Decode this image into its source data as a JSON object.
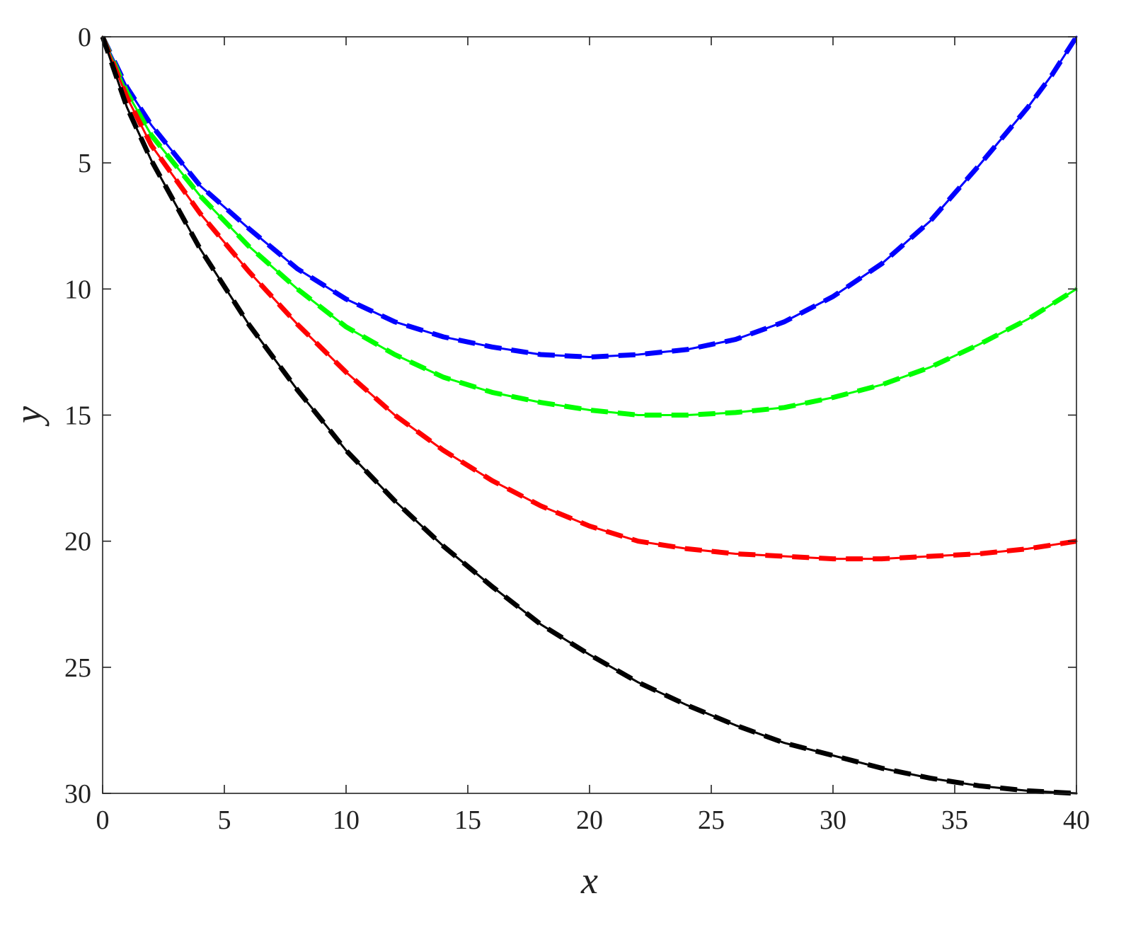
{
  "chart_data": {
    "type": "line",
    "xlabel": "x",
    "ylabel": "y",
    "xlim": [
      0,
      40
    ],
    "ylim": [
      0,
      30
    ],
    "y_axis_reversed": true,
    "grid": false,
    "xticks": [
      "0",
      "5",
      "10",
      "15",
      "20",
      "25",
      "30",
      "35",
      "40"
    ],
    "yticks": [
      "0",
      "5",
      "10",
      "15",
      "20",
      "25",
      "30"
    ],
    "series": [
      {
        "color": "#0000ff",
        "styles": [
          "solid",
          "dashed"
        ],
        "x": [
          0,
          1,
          2,
          4,
          6,
          8,
          10,
          12,
          14,
          16,
          18,
          20,
          22,
          24,
          26,
          28,
          30,
          32,
          34,
          36,
          38,
          39,
          40
        ],
        "y": [
          0,
          2.0,
          3.5,
          5.9,
          7.6,
          9.2,
          10.4,
          11.3,
          11.9,
          12.3,
          12.6,
          12.7,
          12.6,
          12.4,
          12.0,
          11.3,
          10.3,
          9.0,
          7.3,
          5.1,
          2.8,
          1.5,
          0
        ]
      },
      {
        "color": "#00ff00",
        "styles": [
          "solid",
          "dashed"
        ],
        "x": [
          0,
          1,
          2,
          4,
          6,
          8,
          10,
          12,
          14,
          16,
          18,
          20,
          22,
          24,
          26,
          28,
          30,
          32,
          34,
          36,
          38,
          40
        ],
        "y": [
          0,
          2.2,
          3.9,
          6.3,
          8.3,
          10.0,
          11.5,
          12.6,
          13.5,
          14.1,
          14.5,
          14.8,
          15.0,
          15.0,
          14.9,
          14.7,
          14.3,
          13.8,
          13.1,
          12.2,
          11.2,
          10.0
        ]
      },
      {
        "color": "#ff0000",
        "styles": [
          "solid",
          "dashed"
        ],
        "x": [
          0,
          1,
          2,
          4,
          6,
          8,
          10,
          12,
          14,
          16,
          18,
          20,
          22,
          24,
          26,
          28,
          30,
          32,
          34,
          36,
          38,
          40
        ],
        "y": [
          0,
          2.4,
          4.3,
          7.0,
          9.3,
          11.4,
          13.3,
          15.0,
          16.4,
          17.6,
          18.6,
          19.4,
          20.0,
          20.3,
          20.5,
          20.6,
          20.7,
          20.7,
          20.6,
          20.5,
          20.3,
          20.0
        ]
      },
      {
        "color": "#000000",
        "styles": [
          "solid",
          "dashed"
        ],
        "x": [
          0,
          1,
          2,
          4,
          6,
          8,
          10,
          12,
          14,
          16,
          18,
          20,
          22,
          24,
          26,
          28,
          30,
          32,
          34,
          36,
          38,
          40
        ],
        "y": [
          0,
          2.8,
          4.9,
          8.4,
          11.4,
          14.0,
          16.4,
          18.4,
          20.2,
          21.8,
          23.3,
          24.5,
          25.6,
          26.5,
          27.3,
          28.0,
          28.5,
          29.0,
          29.4,
          29.7,
          29.9,
          30.0
        ]
      }
    ]
  }
}
